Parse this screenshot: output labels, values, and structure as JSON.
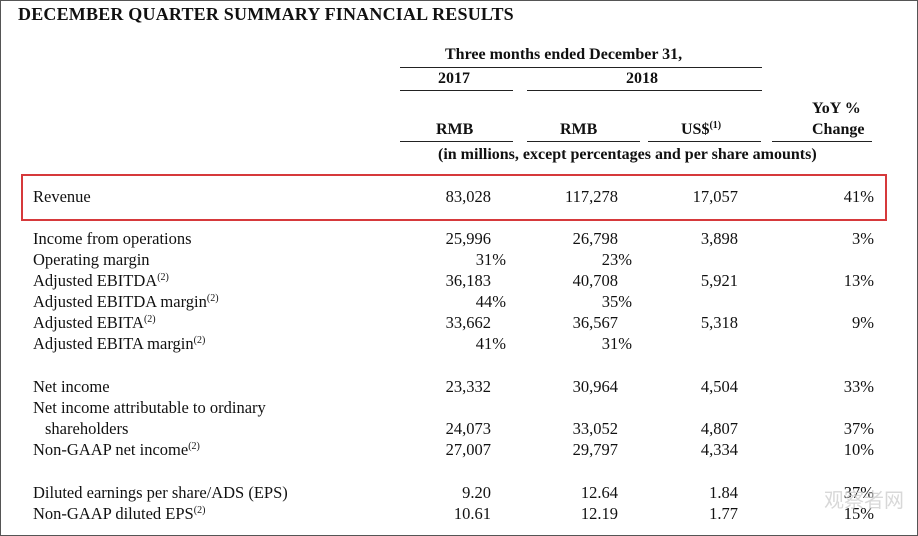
{
  "title": "DECEMBER QUARTER SUMMARY FINANCIAL RESULTS",
  "header": {
    "period": "Three months ended December 31,",
    "year1": "2017",
    "year2": "2018",
    "col1": "RMB",
    "col2": "RMB",
    "col3": "US$",
    "col3_note": "(1)",
    "col4_line1": "YoY %",
    "col4_line2": "Change",
    "units": "(in millions, except percentages and per share amounts)"
  },
  "rows": [
    {
      "label": "Revenue",
      "note": "",
      "v1": "83,028",
      "v2": "117,278",
      "v3": "17,057",
      "v4": "41%"
    },
    {
      "label": "Income from operations",
      "note": "",
      "v1": "25,996",
      "v2": "26,798",
      "v3": "3,898",
      "v4": "3%"
    },
    {
      "label": "Operating margin",
      "note": "",
      "v1": "31%",
      "v2": "23%",
      "v3": "",
      "v4": ""
    },
    {
      "label": "Adjusted EBITDA",
      "note": "(2)",
      "v1": "36,183",
      "v2": "40,708",
      "v3": "5,921",
      "v4": "13%"
    },
    {
      "label": "Adjusted EBITDA margin",
      "note": "(2)",
      "v1": "44%",
      "v2": "35%",
      "v3": "",
      "v4": ""
    },
    {
      "label": "Adjusted EBITA",
      "note": "(2)",
      "v1": "33,662",
      "v2": "36,567",
      "v3": "5,318",
      "v4": "9%"
    },
    {
      "label": "Adjusted EBITA margin",
      "note": "(2)",
      "v1": "41%",
      "v2": "31%",
      "v3": "",
      "v4": ""
    },
    {
      "label": "Net income",
      "note": "",
      "v1": "23,332",
      "v2": "30,964",
      "v3": "4,504",
      "v4": "33%"
    },
    {
      "label": "Net income attributable to ordinary",
      "note": "",
      "v1": "",
      "v2": "",
      "v3": "",
      "v4": ""
    },
    {
      "label": "shareholders",
      "note": "",
      "v1": "24,073",
      "v2": "33,052",
      "v3": "4,807",
      "v4": "37%"
    },
    {
      "label": "Non-GAAP net income",
      "note": "(2)",
      "v1": "27,007",
      "v2": "29,797",
      "v3": "4,334",
      "v4": "10%"
    },
    {
      "label": "Diluted earnings per share/ADS (EPS)",
      "note": "",
      "v1": "9.20",
      "v2": "12.64",
      "v3": "1.84",
      "v4": "37%"
    },
    {
      "label": "Non-GAAP diluted EPS",
      "note": "(2)",
      "v1": "10.61",
      "v2": "12.19",
      "v3": "1.77",
      "v4": "15%"
    }
  ],
  "watermark": "观察者网",
  "colors": {
    "highlight": "#d6393b"
  }
}
